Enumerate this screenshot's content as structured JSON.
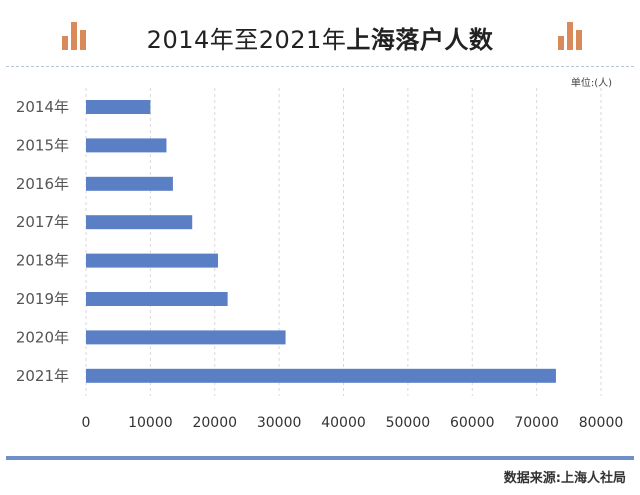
{
  "header": {
    "title_regular": "2014年至2021年",
    "title_bold": "上海落户人数"
  },
  "unit_label": "单位:(人)",
  "source_label": "数据来源:上海人社局",
  "colors": {
    "bar": "#5b7fc4",
    "grid": "#d9d9d9",
    "accent": "#d98a5a",
    "rule": "#6f90c8"
  },
  "icons": {
    "left": "bar-chart-icon",
    "right": "bar-chart-icon"
  },
  "chart_data": {
    "type": "bar",
    "orientation": "horizontal",
    "categories": [
      "2014年",
      "2015年",
      "2016年",
      "2017年",
      "2018年",
      "2019年",
      "2020年",
      "2021年"
    ],
    "values": [
      10000,
      12500,
      13500,
      16500,
      20500,
      22000,
      31000,
      73000
    ],
    "xlim": [
      0,
      80000
    ],
    "xticks": [
      0,
      10000,
      20000,
      30000,
      40000,
      50000,
      60000,
      70000,
      80000
    ],
    "grid": "vertical dashed"
  }
}
